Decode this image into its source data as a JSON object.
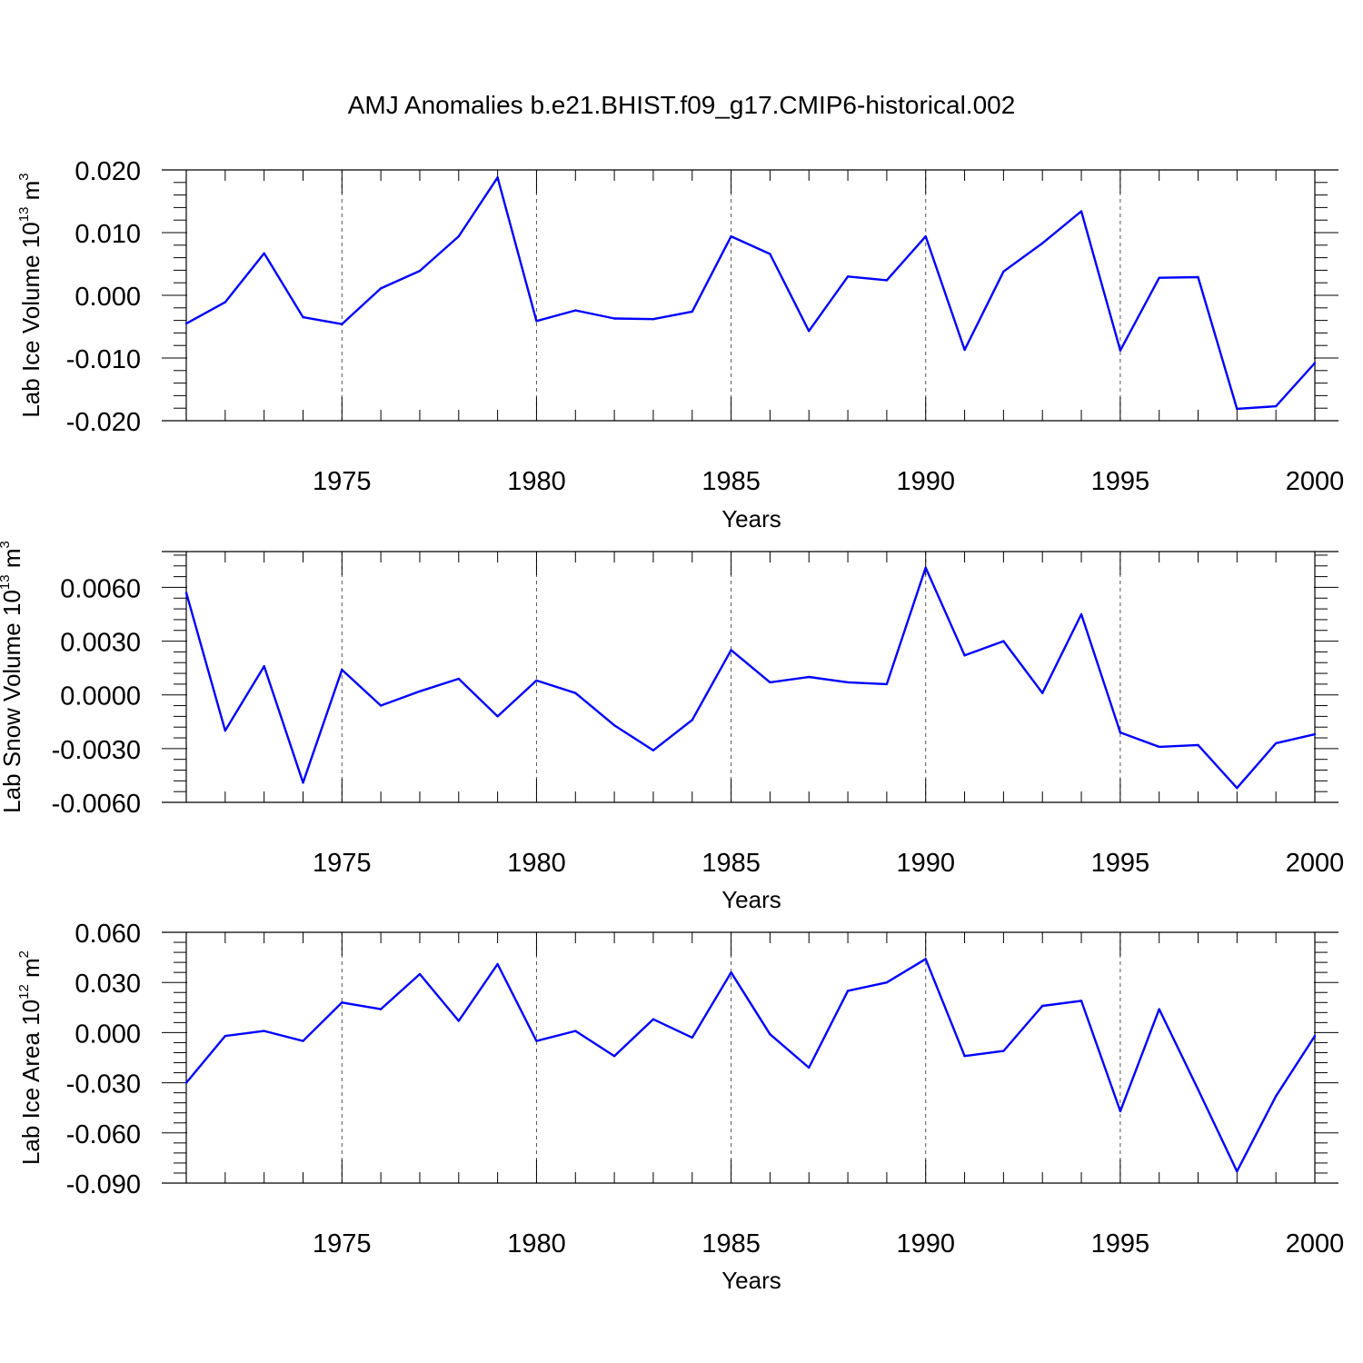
{
  "title": "AMJ Anomalies b.e21.BHIST.f09_g17.CMIP6-historical.002",
  "chart_data": [
    {
      "type": "line",
      "ylabel": {
        "text": "Lab Ice Volume 10",
        "sup": "13",
        "unit": " m",
        "unit_sup": "3"
      },
      "xlabel": "Years",
      "xlim": [
        1971,
        2000
      ],
      "ylim": [
        -0.02,
        0.02
      ],
      "yticks": [
        -0.02,
        -0.01,
        0.0,
        0.01,
        0.02
      ],
      "ytick_labels": [
        "-0.020",
        "-0.010",
        "0.000",
        "0.010",
        "0.020"
      ],
      "xticks": [
        1975,
        1980,
        1985,
        1990,
        1995,
        2000
      ],
      "xtick_labels": [
        "1975",
        "1980",
        "1985",
        "1990",
        "1995",
        "2000"
      ],
      "grid": "vertical-dashed",
      "color": "#0000ff",
      "x": [
        1971,
        1972,
        1973,
        1974,
        1975,
        1976,
        1977,
        1978,
        1979,
        1980,
        1981,
        1982,
        1983,
        1984,
        1985,
        1986,
        1987,
        1988,
        1989,
        1990,
        1991,
        1992,
        1993,
        1994,
        1995,
        1996,
        1997,
        1998,
        1999,
        2000
      ],
      "values": [
        -0.0045,
        -0.0011,
        0.0067,
        -0.0035,
        -0.0046,
        0.0011,
        0.0039,
        0.0094,
        0.0188,
        -0.0041,
        -0.0024,
        -0.0037,
        -0.0038,
        -0.0026,
        0.0094,
        0.0066,
        -0.0057,
        0.003,
        0.0024,
        0.0094,
        -0.0087,
        0.0038,
        0.0083,
        0.0134,
        -0.0088,
        0.0028,
        0.0029,
        -0.0181,
        -0.0177,
        -0.0108
      ]
    },
    {
      "type": "line",
      "ylabel": {
        "text": "Lab Snow Volume 10",
        "sup": "13",
        "unit": " m",
        "unit_sup": "3"
      },
      "xlabel": "Years",
      "xlim": [
        1971,
        2000
      ],
      "ylim": [
        -0.006,
        0.008
      ],
      "yticks": [
        -0.006,
        -0.003,
        0.0,
        0.003,
        0.006
      ],
      "ytick_labels": [
        "-0.0060",
        "-0.0030",
        "0.0000",
        "0.0030",
        "0.0060"
      ],
      "xticks": [
        1975,
        1980,
        1985,
        1990,
        1995,
        2000
      ],
      "xtick_labels": [
        "1975",
        "1980",
        "1985",
        "1990",
        "1995",
        "2000"
      ],
      "grid": "vertical-dashed",
      "color": "#0000ff",
      "x": [
        1971,
        1972,
        1973,
        1974,
        1975,
        1976,
        1977,
        1978,
        1979,
        1980,
        1981,
        1982,
        1983,
        1984,
        1985,
        1986,
        1987,
        1988,
        1989,
        1990,
        1991,
        1992,
        1993,
        1994,
        1995,
        1996,
        1997,
        1998,
        1999,
        2000
      ],
      "values": [
        0.0057,
        -0.002,
        0.0016,
        -0.0049,
        0.0014,
        -0.0006,
        0.0002,
        0.0009,
        -0.0012,
        0.0008,
        0.0001,
        -0.0017,
        -0.0031,
        -0.0014,
        0.0025,
        0.0007,
        0.001,
        0.0007,
        0.0006,
        0.0071,
        0.0022,
        0.003,
        0.0001,
        0.0045,
        -0.0021,
        -0.0029,
        -0.0028,
        -0.0052,
        -0.0027,
        -0.0022
      ]
    },
    {
      "type": "line",
      "ylabel": {
        "text": "Lab Ice Area 10",
        "sup": "12",
        "unit": " m",
        "unit_sup": "2"
      },
      "xlabel": "Years",
      "xlim": [
        1971,
        2000
      ],
      "ylim": [
        -0.09,
        0.06
      ],
      "yticks": [
        -0.09,
        -0.06,
        -0.03,
        0.0,
        0.03,
        0.06
      ],
      "ytick_labels": [
        "-0.090",
        "-0.060",
        "-0.030",
        "0.000",
        "0.030",
        "0.060"
      ],
      "xticks": [
        1975,
        1980,
        1985,
        1990,
        1995,
        2000
      ],
      "xtick_labels": [
        "1975",
        "1980",
        "1985",
        "1990",
        "1995",
        "2000"
      ],
      "grid": "vertical-dashed",
      "color": "#0000ff",
      "x": [
        1971,
        1972,
        1973,
        1974,
        1975,
        1976,
        1977,
        1978,
        1979,
        1980,
        1981,
        1982,
        1983,
        1984,
        1985,
        1986,
        1987,
        1988,
        1989,
        1990,
        1991,
        1992,
        1993,
        1994,
        1995,
        1996,
        1997,
        1998,
        1999,
        2000
      ],
      "values": [
        -0.03,
        -0.002,
        0.001,
        -0.005,
        0.018,
        0.014,
        0.035,
        0.007,
        0.041,
        -0.005,
        0.001,
        -0.014,
        0.008,
        -0.003,
        0.036,
        -0.001,
        -0.021,
        0.025,
        0.03,
        0.044,
        -0.014,
        -0.011,
        0.016,
        0.019,
        -0.047,
        0.014,
        -0.034,
        -0.083,
        -0.038,
        -0.002
      ]
    }
  ]
}
